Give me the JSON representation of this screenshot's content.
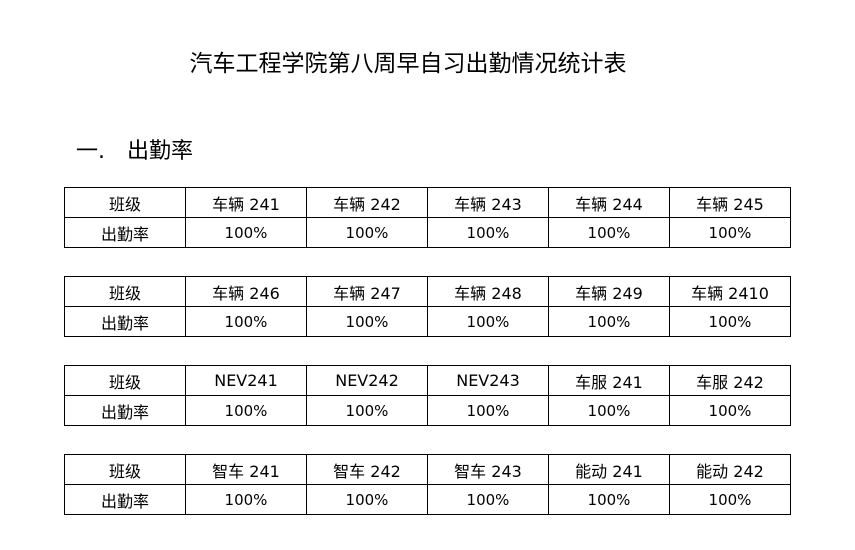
{
  "title": "汽车工程学院第八周早自习出勤情况统计表",
  "section": {
    "number": "一.",
    "label": "出勤率"
  },
  "row_labels": {
    "class": "班级",
    "rate": "出勤率"
  },
  "tables": [
    {
      "classes": [
        "车辆 241",
        "车辆 242",
        "车辆 243",
        "车辆 244",
        "车辆 245"
      ],
      "rates": [
        "100%",
        "100%",
        "100%",
        "100%",
        "100%"
      ]
    },
    {
      "classes": [
        "车辆 246",
        "车辆 247",
        "车辆 248",
        "车辆 249",
        "车辆 2410"
      ],
      "rates": [
        "100%",
        "100%",
        "100%",
        "100%",
        "100%"
      ]
    },
    {
      "classes": [
        "NEV241",
        "NEV242",
        "NEV243",
        "车服 241",
        "车服 242"
      ],
      "rates": [
        "100%",
        "100%",
        "100%",
        "100%",
        "100%"
      ]
    },
    {
      "classes": [
        "智车 241",
        "智车 242",
        "智车 243",
        "能动 241",
        "能动 242"
      ],
      "rates": [
        "100%",
        "100%",
        "100%",
        "100%",
        "100%"
      ]
    }
  ]
}
